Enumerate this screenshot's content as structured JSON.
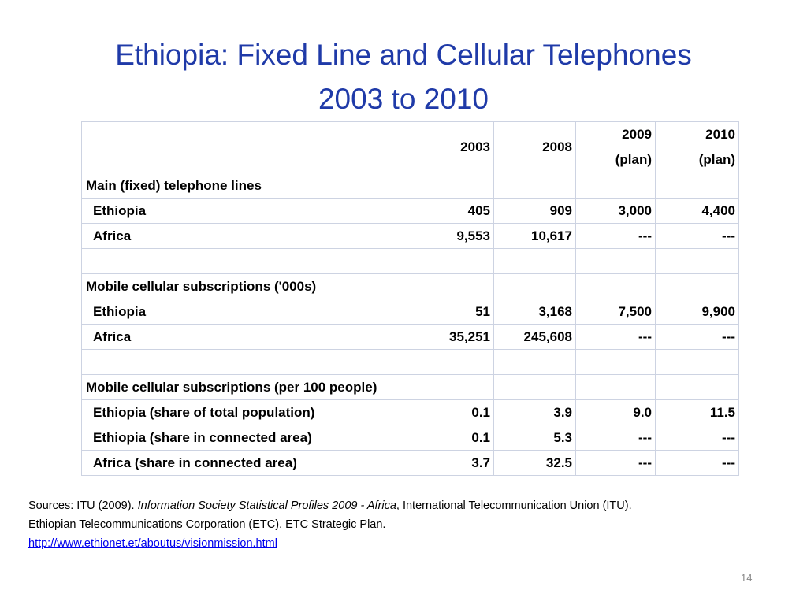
{
  "title": [
    "Ethiopia: Fixed Line and Cellular Telephones",
    "2003 to 2010"
  ],
  "table": {
    "columns": [
      [
        "2003"
      ],
      [
        "2008"
      ],
      [
        "2009",
        "(plan)"
      ],
      [
        "2010",
        "(plan)"
      ]
    ],
    "sections": [
      {
        "title": "Main (fixed) telephone lines",
        "rows": [
          {
            "label": "Ethiopia",
            "cells": [
              "405",
              "909",
              "3,000",
              "4,400"
            ]
          },
          {
            "label": "Africa",
            "cells": [
              "9,553",
              "10,617",
              "---",
              "---"
            ]
          }
        ]
      },
      {
        "title": "Mobile cellular subscriptions ('000s)",
        "rows": [
          {
            "label": "Ethiopia",
            "cells": [
              "51",
              "3,168",
              "7,500",
              "9,900"
            ]
          },
          {
            "label": "Africa",
            "cells": [
              "35,251",
              "245,608",
              "---",
              "---"
            ]
          }
        ]
      },
      {
        "title": "Mobile cellular subscriptions (per 100 people)",
        "rows": [
          {
            "label": "Ethiopia (share of total population)",
            "cells": [
              "0.1",
              "3.9",
              "9.0",
              "11.5"
            ]
          },
          {
            "label": "Ethiopia (share in connected area)",
            "cells": [
              "0.1",
              "5.3",
              "---",
              "---"
            ]
          },
          {
            "label": "Africa (share in connected area)",
            "cells": [
              "3.7",
              "32.5",
              "---",
              "---"
            ]
          }
        ]
      }
    ]
  },
  "sources": {
    "line1": [
      "Sources: ITU (2009).",
      "Information Society Statistical Profiles 2009 - Africa",
      ", International Telecommunication Union (ITU)."
    ],
    "line2": "Ethiopian Telecommunications Corporation (ETC). ETC Strategic Plan.",
    "link": "http://www.ethionet.et/aboutus/visionmission.html"
  },
  "page_number": "14"
}
